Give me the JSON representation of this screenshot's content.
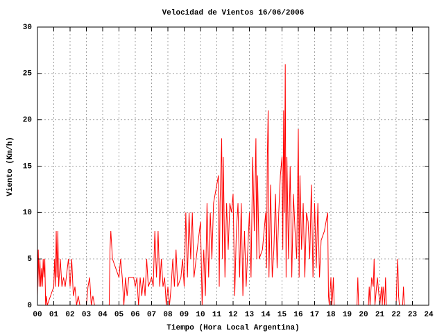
{
  "chart_data": {
    "type": "line",
    "title": "Velocidad de Vientos 16/06/2006",
    "x_label": "Tiempo (Hora Local Argentina)",
    "y_label": "Viento (Km/h)",
    "xlim": [
      0,
      24
    ],
    "ylim": [
      0,
      30
    ],
    "xticks": [
      {
        "value": 0,
        "label": "00"
      },
      {
        "value": 1,
        "label": "01"
      },
      {
        "value": 2,
        "label": "02"
      },
      {
        "value": 3,
        "label": "03"
      },
      {
        "value": 4,
        "label": "04"
      },
      {
        "value": 5,
        "label": "05"
      },
      {
        "value": 6,
        "label": "06"
      },
      {
        "value": 7,
        "label": "07"
      },
      {
        "value": 8,
        "label": "08"
      },
      {
        "value": 9,
        "label": "09"
      },
      10,
      11,
      12,
      13,
      14,
      15,
      16,
      17,
      18,
      19,
      20,
      21,
      22,
      23,
      24
    ],
    "yticks": [
      0,
      5,
      10,
      15,
      20,
      25,
      30
    ],
    "grid": true,
    "x": [
      0.0,
      0.05,
      0.1,
      0.15,
      0.2,
      0.25,
      0.3,
      0.35,
      0.4,
      0.45,
      0.5,
      0.55,
      0.6,
      1.0,
      1.05,
      1.1,
      1.15,
      1.2,
      1.25,
      1.3,
      1.4,
      1.5,
      1.6,
      1.7,
      1.9,
      2.0,
      2.1,
      2.2,
      2.3,
      2.4,
      2.5,
      2.6,
      3.0,
      3.1,
      3.2,
      3.3,
      3.4,
      3.5,
      4.4,
      4.45,
      4.5,
      4.6,
      5.0,
      5.1,
      5.2,
      5.3,
      5.4,
      5.5,
      5.6,
      5.9,
      6.0,
      6.1,
      6.2,
      6.3,
      6.4,
      6.5,
      6.6,
      6.7,
      6.8,
      7.0,
      7.1,
      7.2,
      7.3,
      7.4,
      7.5,
      7.6,
      7.7,
      7.8,
      7.9,
      8.0,
      8.1,
      8.2,
      8.3,
      8.4,
      8.5,
      8.6,
      8.8,
      8.9,
      9.0,
      9.1,
      9.2,
      9.3,
      9.4,
      9.5,
      9.6,
      9.8,
      10.0,
      10.1,
      10.2,
      10.3,
      10.4,
      10.5,
      10.6,
      10.7,
      10.8,
      10.9,
      11.0,
      11.1,
      11.15,
      11.2,
      11.3,
      11.35,
      11.4,
      11.5,
      11.6,
      11.7,
      11.8,
      11.9,
      12.0,
      12.1,
      12.2,
      12.3,
      12.4,
      12.5,
      12.6,
      12.7,
      12.8,
      12.9,
      13.0,
      13.1,
      13.2,
      13.3,
      13.4,
      13.45,
      13.5,
      13.6,
      13.8,
      14.0,
      14.05,
      14.1,
      14.15,
      14.2,
      14.3,
      14.4,
      14.5,
      14.6,
      14.7,
      14.8,
      14.9,
      15.0,
      15.05,
      15.1,
      15.15,
      15.2,
      15.25,
      15.3,
      15.4,
      15.5,
      15.6,
      15.7,
      15.8,
      15.9,
      16.0,
      16.05,
      16.1,
      16.2,
      16.3,
      16.4,
      16.5,
      16.6,
      16.7,
      16.8,
      16.9,
      17.0,
      17.1,
      17.2,
      17.3,
      17.4,
      17.6,
      17.8,
      17.85,
      17.9,
      18.0,
      18.05,
      18.1,
      18.15,
      18.2,
      19.6,
      19.65,
      19.7,
      20.3,
      20.35,
      20.4,
      20.5,
      20.6,
      20.65,
      20.7,
      20.8,
      20.85,
      20.9,
      21.0,
      21.1,
      21.15,
      21.2,
      21.3,
      21.35,
      21.4,
      22.0,
      22.05,
      22.1,
      22.15,
      22.2,
      22.4,
      22.45,
      22.5
    ],
    "series": [
      {
        "name": "Viento",
        "color": "#ff0000",
        "values": [
          1,
          6,
          2,
          5,
          2,
          4,
          2,
          5,
          3,
          5,
          0,
          1,
          0,
          2,
          5,
          2,
          8,
          3,
          8,
          2,
          5,
          2,
          3,
          2,
          5,
          2,
          5,
          1,
          2,
          0,
          1,
          0,
          0,
          2,
          3,
          0,
          1,
          0,
          0,
          6,
          8,
          5,
          3,
          5,
          3,
          0,
          3,
          1,
          3,
          3,
          2,
          3,
          0,
          3,
          1,
          3,
          1,
          5,
          2,
          3,
          2,
          8,
          3,
          8,
          2,
          5,
          2,
          3,
          0,
          2,
          0,
          2,
          5,
          2,
          6,
          2,
          3,
          5,
          2,
          10,
          3,
          10,
          5,
          10,
          3,
          6,
          9,
          0,
          6,
          1,
          11,
          3,
          10,
          5,
          11,
          12,
          13,
          14,
          2,
          11,
          18,
          5,
          16,
          3,
          11,
          6,
          11,
          10,
          12,
          1,
          8,
          11,
          3,
          11,
          1,
          8,
          2,
          6,
          10,
          3,
          16,
          8,
          18,
          5,
          14,
          5,
          6,
          10,
          4,
          16,
          21,
          3,
          13,
          3,
          6,
          12,
          4,
          10,
          14,
          16,
          6,
          21,
          10,
          26,
          3,
          16,
          5,
          15,
          3,
          12,
          8,
          5,
          19,
          3,
          14,
          6,
          11,
          3,
          10,
          9,
          5,
          13,
          3,
          11,
          4,
          11,
          3,
          7,
          8,
          10,
          1,
          0,
          3,
          0,
          1,
          3,
          0,
          0,
          3,
          0,
          0,
          2,
          0,
          3,
          2,
          5,
          0,
          2,
          3,
          2,
          0,
          2,
          0,
          2,
          0,
          3,
          0,
          0,
          3,
          5,
          1,
          0,
          0,
          2,
          0
        ]
      }
    ]
  }
}
